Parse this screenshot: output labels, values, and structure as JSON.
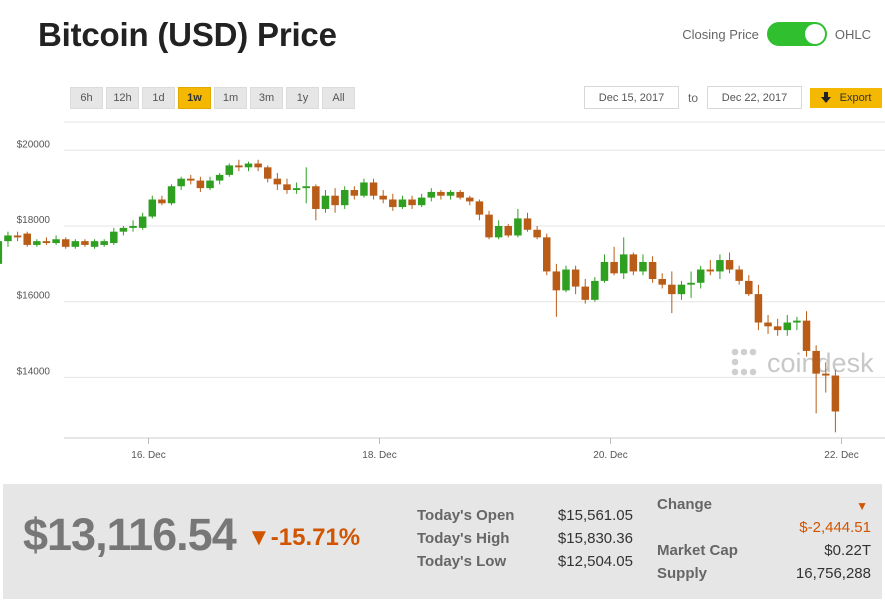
{
  "header": {
    "title": "Bitcoin (USD) Price",
    "toggle_left": "Closing Price",
    "toggle_right": "OHLC"
  },
  "range_buttons": [
    "6h",
    "12h",
    "1d",
    "1w",
    "1m",
    "3m",
    "1y",
    "All"
  ],
  "active_range": "1w",
  "date_range": {
    "from": "Dec 15, 2017",
    "to_label": "to",
    "to": "Dec 22, 2017",
    "export_label": "Export"
  },
  "watermark": "coindesk",
  "colors": {
    "up": "#2e9f21",
    "down": "#b85c17",
    "accent": "#f5b800",
    "negative": "#d35400"
  },
  "chart_data": {
    "type": "candlestick",
    "ylim": [
      12400,
      20800
    ],
    "y_ticks": [
      14000,
      16000,
      18000,
      20000
    ],
    "y_tick_labels": [
      "$14000",
      "$16000",
      "$18000",
      "$20000"
    ],
    "x_ticks": [
      1,
      3,
      5,
      7
    ],
    "x_tick_labels": [
      "16. Dec",
      "18. Dec",
      "20. Dec",
      "22. Dec"
    ],
    "x_range": [
      0,
      7.3
    ],
    "grid": true,
    "interval_days": 0.0833,
    "start_day": -0.3,
    "ohlc": [
      [
        17000,
        17900,
        16900,
        17600
      ],
      [
        17600,
        17850,
        17450,
        17750
      ],
      [
        17750,
        17850,
        17600,
        17700
      ],
      [
        17800,
        17850,
        17450,
        17500
      ],
      [
        17500,
        17650,
        17450,
        17600
      ],
      [
        17600,
        17700,
        17500,
        17550
      ],
      [
        17550,
        17750,
        17500,
        17650
      ],
      [
        17650,
        17700,
        17400,
        17450
      ],
      [
        17450,
        17650,
        17400,
        17600
      ],
      [
        17600,
        17650,
        17450,
        17500
      ],
      [
        17450,
        17650,
        17400,
        17600
      ],
      [
        17500,
        17650,
        17450,
        17600
      ],
      [
        17550,
        17950,
        17500,
        17850
      ],
      [
        17850,
        18000,
        17750,
        17950
      ],
      [
        17950,
        18150,
        17850,
        18000
      ],
      [
        17950,
        18350,
        17900,
        18250
      ],
      [
        18250,
        18800,
        18200,
        18700
      ],
      [
        18700,
        18800,
        18550,
        18600
      ],
      [
        18600,
        19100,
        18550,
        19050
      ],
      [
        19050,
        19300,
        18950,
        19250
      ],
      [
        19250,
        19350,
        19100,
        19200
      ],
      [
        19200,
        19300,
        18900,
        19000
      ],
      [
        19000,
        19300,
        18950,
        19200
      ],
      [
        19200,
        19400,
        19100,
        19350
      ],
      [
        19350,
        19650,
        19300,
        19600
      ],
      [
        19600,
        19750,
        19450,
        19550
      ],
      [
        19550,
        19700,
        19450,
        19650
      ],
      [
        19650,
        19750,
        19450,
        19550
      ],
      [
        19550,
        19600,
        19150,
        19250
      ],
      [
        19250,
        19400,
        18950,
        19100
      ],
      [
        19100,
        19250,
        18850,
        18950
      ],
      [
        18950,
        19150,
        18850,
        19000
      ],
      [
        19000,
        19550,
        18600,
        19050
      ],
      [
        19050,
        19100,
        18150,
        18450
      ],
      [
        18450,
        18950,
        18350,
        18800
      ],
      [
        18800,
        19000,
        18350,
        18550
      ],
      [
        18550,
        19050,
        18450,
        18950
      ],
      [
        18950,
        19050,
        18700,
        18800
      ],
      [
        18800,
        19250,
        18750,
        19150
      ],
      [
        19150,
        19250,
        18700,
        18800
      ],
      [
        18800,
        18950,
        18600,
        18700
      ],
      [
        18700,
        18850,
        18400,
        18500
      ],
      [
        18500,
        18800,
        18450,
        18700
      ],
      [
        18700,
        18800,
        18450,
        18550
      ],
      [
        18550,
        18850,
        18500,
        18750
      ],
      [
        18750,
        19000,
        18650,
        18900
      ],
      [
        18900,
        18950,
        18700,
        18800
      ],
      [
        18800,
        18950,
        18700,
        18900
      ],
      [
        18900,
        18950,
        18700,
        18750
      ],
      [
        18750,
        18800,
        18550,
        18650
      ],
      [
        18650,
        18700,
        18150,
        18300
      ],
      [
        18300,
        18400,
        17650,
        17700
      ],
      [
        17700,
        18150,
        17650,
        18000
      ],
      [
        18000,
        18050,
        17700,
        17750
      ],
      [
        17750,
        18450,
        17700,
        18200
      ],
      [
        18200,
        18350,
        17850,
        17900
      ],
      [
        17900,
        18000,
        17650,
        17700
      ],
      [
        17700,
        17800,
        16700,
        16800
      ],
      [
        16800,
        17000,
        15600,
        16300
      ],
      [
        16300,
        16950,
        16250,
        16850
      ],
      [
        16850,
        16950,
        16200,
        16400
      ],
      [
        16400,
        16600,
        15950,
        16050
      ],
      [
        16050,
        16650,
        16000,
        16550
      ],
      [
        16550,
        17250,
        16500,
        17050
      ],
      [
        17050,
        17450,
        16700,
        16750
      ],
      [
        16750,
        17700,
        16600,
        17250
      ],
      [
        17250,
        17300,
        16700,
        16800
      ],
      [
        16800,
        17250,
        16700,
        17050
      ],
      [
        17050,
        17200,
        16500,
        16600
      ],
      [
        16600,
        16750,
        16350,
        16450
      ],
      [
        16450,
        16800,
        15700,
        16200
      ],
      [
        16200,
        16550,
        16050,
        16450
      ],
      [
        16450,
        16800,
        16100,
        16500
      ],
      [
        16500,
        16950,
        16350,
        16850
      ],
      [
        16850,
        17100,
        16700,
        16800
      ],
      [
        16800,
        17250,
        16600,
        17100
      ],
      [
        17100,
        17300,
        16750,
        16850
      ],
      [
        16850,
        16950,
        16450,
        16550
      ],
      [
        16550,
        16700,
        16150,
        16200
      ],
      [
        16200,
        16450,
        15250,
        15450
      ],
      [
        15450,
        15650,
        15150,
        15350
      ],
      [
        15350,
        15550,
        15100,
        15250
      ],
      [
        15250,
        15650,
        15100,
        15450
      ],
      [
        15450,
        15600,
        15250,
        15500
      ],
      [
        15500,
        15750,
        14550,
        14700
      ],
      [
        14700,
        14850,
        13050,
        14100
      ],
      [
        14100,
        14400,
        13600,
        14050
      ],
      [
        14050,
        14200,
        12550,
        13100
      ]
    ]
  },
  "stats": {
    "price": "$13,116.54",
    "change_pct": "▼-15.71%",
    "open_label": "Today's Open",
    "open_value": "$15,561.05",
    "high_label": "Today's High",
    "high_value": "$15,830.36",
    "low_label": "Today's Low",
    "low_value": "$12,504.05",
    "change_label": "Change",
    "change_arrow": "▼",
    "change_value": "$-2,444.51",
    "mcap_label": "Market Cap",
    "mcap_value": "$0.22T",
    "supply_label": "Supply",
    "supply_value": "16,756,288"
  }
}
